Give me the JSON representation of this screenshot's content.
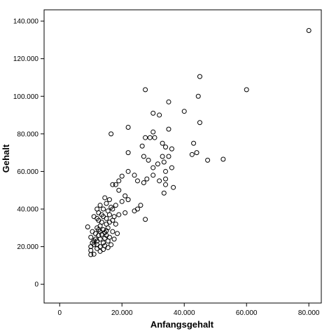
{
  "chart_data": {
    "type": "scatter",
    "title": "",
    "xlabel": "Anfangsgehalt",
    "ylabel": "Gehalt",
    "xlim": [
      -5000,
      84000
    ],
    "ylim": [
      -10000,
      146000
    ],
    "grid": false,
    "legend": "none",
    "marker": "open-circle",
    "colors": {
      "marker_stroke": "#000000",
      "axis": "#000000",
      "background": "#ffffff"
    },
    "x_ticks": [
      {
        "value": 0,
        "label": "0"
      },
      {
        "value": 20000,
        "label": "20.000"
      },
      {
        "value": 40000,
        "label": "40.000"
      },
      {
        "value": 60000,
        "label": "60.000"
      },
      {
        "value": 80000,
        "label": "80.000"
      }
    ],
    "y_ticks": [
      {
        "value": 0,
        "label": "0"
      },
      {
        "value": 20000,
        "label": "20.000"
      },
      {
        "value": 40000,
        "label": "40.000"
      },
      {
        "value": 60000,
        "label": "60.000"
      },
      {
        "value": 80000,
        "label": "80.000"
      },
      {
        "value": 100000,
        "label": "100.000"
      },
      {
        "value": 120000,
        "label": "120.000"
      },
      {
        "value": 140000,
        "label": "140.000"
      }
    ],
    "series": [
      {
        "points": [
          [
            80000,
            135000
          ],
          [
            60000,
            103500
          ],
          [
            45000,
            110500
          ],
          [
            44500,
            100000
          ],
          [
            45000,
            86000
          ],
          [
            27500,
            103500
          ],
          [
            35000,
            97000
          ],
          [
            30000,
            91000
          ],
          [
            32000,
            90000
          ],
          [
            40000,
            92000
          ],
          [
            16500,
            80000
          ],
          [
            22000,
            83500
          ],
          [
            35000,
            82500
          ],
          [
            30000,
            81000
          ],
          [
            29000,
            78000
          ],
          [
            30500,
            78000
          ],
          [
            27500,
            78000
          ],
          [
            43000,
            75000
          ],
          [
            44000,
            70000
          ],
          [
            42500,
            69000
          ],
          [
            47500,
            66000
          ],
          [
            52500,
            66500
          ],
          [
            26500,
            73500
          ],
          [
            33000,
            75000
          ],
          [
            34000,
            73000
          ],
          [
            36000,
            72000
          ],
          [
            35000,
            68000
          ],
          [
            33000,
            68000
          ],
          [
            33500,
            65000
          ],
          [
            31500,
            64000
          ],
          [
            27000,
            68000
          ],
          [
            28500,
            66000
          ],
          [
            30000,
            62000
          ],
          [
            36000,
            62000
          ],
          [
            34000,
            60000
          ],
          [
            30000,
            58000
          ],
          [
            28000,
            56000
          ],
          [
            27000,
            54000
          ],
          [
            25000,
            55000
          ],
          [
            22000,
            70000
          ],
          [
            22000,
            60000
          ],
          [
            24000,
            58000
          ],
          [
            20000,
            57500
          ],
          [
            19000,
            55000
          ],
          [
            18000,
            53000
          ],
          [
            17000,
            53000
          ],
          [
            19000,
            50000
          ],
          [
            21000,
            47000
          ],
          [
            22000,
            45000
          ],
          [
            20000,
            44000
          ],
          [
            18000,
            42000
          ],
          [
            17000,
            40000
          ],
          [
            16000,
            45000
          ],
          [
            14500,
            46000
          ],
          [
            15000,
            43000
          ],
          [
            13000,
            42000
          ],
          [
            12000,
            40000
          ],
          [
            12500,
            38000
          ],
          [
            26000,
            42000
          ],
          [
            25000,
            40000
          ],
          [
            24000,
            39000
          ],
          [
            21000,
            38000
          ],
          [
            19000,
            37000
          ],
          [
            17500,
            36000
          ],
          [
            27500,
            34500
          ],
          [
            36500,
            51500
          ],
          [
            34000,
            53000
          ],
          [
            33500,
            48500
          ],
          [
            34000,
            56000
          ],
          [
            32000,
            55000
          ],
          [
            11000,
            36000
          ],
          [
            9000,
            30500
          ],
          [
            10000,
            25000
          ],
          [
            10500,
            22000
          ],
          [
            10000,
            18000
          ],
          [
            11000,
            16000
          ],
          [
            10000,
            15750
          ],
          [
            12000,
            30000
          ],
          [
            12500,
            34000
          ],
          [
            13000,
            31000
          ],
          [
            14000,
            29000
          ],
          [
            15000,
            26000
          ],
          [
            16000,
            25000
          ],
          [
            14000,
            22000
          ],
          [
            13000,
            20000
          ],
          [
            12000,
            19000
          ],
          [
            11500,
            27000
          ],
          [
            13500,
            33000
          ],
          [
            15500,
            30000
          ],
          [
            17000,
            28000
          ],
          [
            16000,
            33000
          ],
          [
            18000,
            32000
          ],
          [
            15000,
            35000
          ],
          [
            14000,
            36000
          ],
          [
            13000,
            24000
          ],
          [
            12000,
            23000
          ],
          [
            11000,
            21000
          ],
          [
            10500,
            28000
          ],
          [
            14500,
            27500
          ],
          [
            15500,
            23000
          ],
          [
            16500,
            21000
          ],
          [
            17500,
            24000
          ],
          [
            18500,
            27000
          ],
          [
            14000,
            18500
          ],
          [
            12500,
            26000
          ],
          [
            11500,
            24000
          ],
          [
            13000,
            28000
          ],
          [
            15000,
            32000
          ],
          [
            16000,
            37000
          ],
          [
            17000,
            34000
          ],
          [
            14000,
            40000
          ],
          [
            12000,
            35000
          ],
          [
            13500,
            37000
          ],
          [
            15500,
            39000
          ],
          [
            16500,
            41000
          ],
          [
            10000,
            20000
          ],
          [
            11000,
            23000
          ],
          [
            12000,
            21000
          ],
          [
            13000,
            17500
          ],
          [
            14500,
            20500
          ],
          [
            15500,
            19500
          ],
          [
            12500,
            29000
          ],
          [
            13500,
            26500
          ],
          [
            14500,
            24500
          ],
          [
            15000,
            28500
          ]
        ]
      }
    ]
  }
}
